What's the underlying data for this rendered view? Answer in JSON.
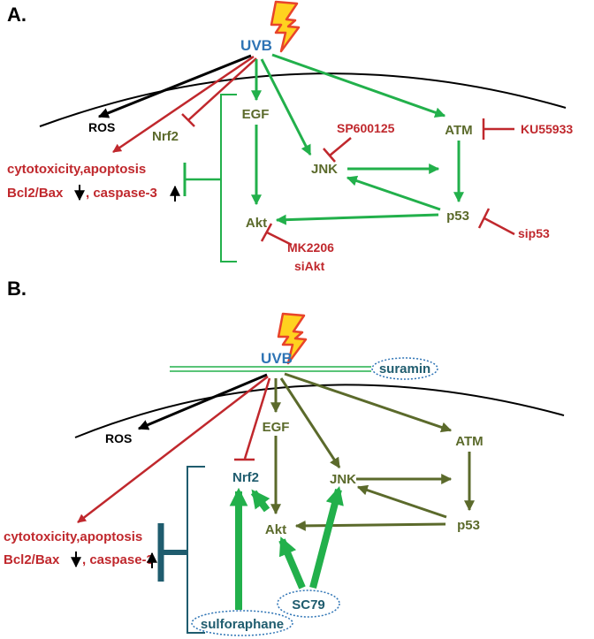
{
  "panel_a": {
    "letter": "A.",
    "uvb": "UVB",
    "ros": "ROS",
    "nrf2": "Nrf2",
    "egf": "EGF",
    "jnk": "JNK",
    "atm": "ATM",
    "akt": "Akt",
    "p53": "p53",
    "sp600125": "SP600125",
    "ku55933": "KU55933",
    "mk2206": "MK2206",
    "siakt": "siAkt",
    "sip53": "sip53",
    "outcome_line1": "cytotoxicity,apoptosis",
    "outcome_bcl2": "Bcl2/Bax",
    "outcome_casp": ", caspase-3"
  },
  "panel_b": {
    "letter": "B.",
    "uvb": "UVB",
    "suramin": "suramin",
    "ros": "ROS",
    "nrf2": "Nrf2",
    "egf": "EGF",
    "jnk": "JNK",
    "atm": "ATM",
    "akt": "Akt",
    "p53": "p53",
    "sc79": "SC79",
    "sulforaphane": "sulforaphane",
    "outcome_line1": "cytotoxicity,apoptosis",
    "outcome_bcl2": "Bcl2/Bax",
    "outcome_casp": ", caspase-3"
  },
  "colors": {
    "green_arrow": "#22b04b",
    "olive_arrow": "#5b6a2b",
    "red": "#c0282d",
    "black": "#000000",
    "blue": "#2e74b5",
    "teal": "#1f5c6e",
    "bolt_fill": "#ffd21f",
    "bolt_stroke": "#e8442a"
  },
  "icons": {
    "bolt": "lightning-bolt-icon"
  }
}
